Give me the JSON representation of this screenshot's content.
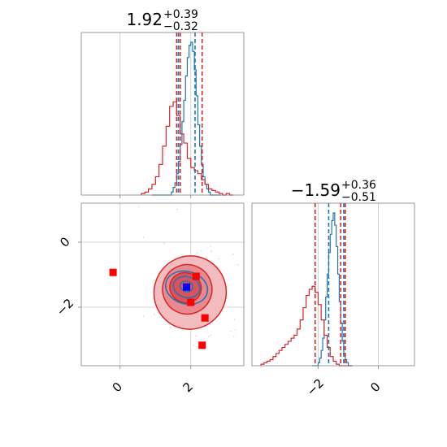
{
  "chart_data": [
    {
      "type": "histogram",
      "panel": "top-left",
      "title_value": "1.92",
      "title_plus": "+0.39",
      "title_minus": "−0.32",
      "x_range": [
        -1.1,
        3.5
      ],
      "x_ticks": [
        0,
        2
      ],
      "grid": true,
      "series": [
        {
          "color": "#1f77b4",
          "x_start": 0.9,
          "bin_width": 0.05,
          "counts": [
            0,
            0,
            0,
            0,
            0,
            0,
            0,
            0,
            0,
            0,
            0,
            0.02,
            0.05,
            0.08,
            0.14,
            0.22,
            0.33,
            0.48,
            0.62,
            0.78,
            0.9,
            0.98,
            1.0,
            0.94,
            0.82,
            0.65,
            0.46,
            0.32,
            0.2,
            0.12,
            0.07,
            0.04,
            0.02,
            0,
            0,
            0,
            0,
            0,
            0
          ]
        },
        {
          "color": "#d62728",
          "x_start": 0.6,
          "bin_width": 0.1,
          "counts": [
            0.01,
            0.02,
            0.04,
            0.07,
            0.12,
            0.2,
            0.32,
            0.45,
            0.58,
            0.61,
            0.52,
            0.4,
            0.34,
            0.24,
            0.18,
            0.16,
            0.14,
            0.1,
            0.07,
            0.04,
            0.03,
            0.02,
            0.01,
            0,
            0.01,
            0
          ]
        }
      ],
      "quantile_lines": [
        {
          "color": "#1f77b4",
          "values": [
            1.65,
            2.12
          ]
        },
        {
          "color": "#d62728",
          "values": [
            1.6,
            1.7,
            2.32
          ]
        }
      ]
    },
    {
      "type": "histogram",
      "panel": "bottom-right",
      "title_value": "−1.59",
      "title_plus": "+0.36",
      "title_minus": "−0.51",
      "x_range": [
        -4.2,
        1.2
      ],
      "x_ticks": [
        -2,
        0
      ],
      "grid": true,
      "series": [
        {
          "color": "#1f77b4",
          "x_start": -2.2,
          "bin_width": 0.05,
          "counts": [
            0,
            0,
            0,
            0,
            0.02,
            0.05,
            0.1,
            0.18,
            0.3,
            0.45,
            0.6,
            0.74,
            0.86,
            0.95,
            1.0,
            0.92,
            0.78,
            0.6,
            0.42,
            0.28,
            0.16,
            0.08,
            0.04,
            0.02,
            0,
            0,
            0
          ]
        },
        {
          "color": "#d62728",
          "x_start": -3.9,
          "bin_width": 0.1,
          "counts": [
            0.01,
            0.02,
            0.03,
            0.04,
            0.06,
            0.08,
            0.1,
            0.12,
            0.14,
            0.16,
            0.18,
            0.2,
            0.24,
            0.3,
            0.38,
            0.46,
            0.5,
            0.52,
            0.48,
            0.4,
            0.3,
            0.2,
            0.12,
            0.06,
            0.03,
            0.01,
            0,
            0,
            0,
            0
          ]
        }
      ],
      "quantile_lines": [
        {
          "color": "#1f77b4",
          "values": [
            -1.65,
            -1.15
          ]
        },
        {
          "color": "#d62728",
          "values": [
            -2.1,
            -1.25,
            -1.1
          ]
        }
      ]
    },
    {
      "type": "contour",
      "panel": "bottom-left",
      "x_range": [
        -1.1,
        3.5
      ],
      "y_range": [
        -3.8,
        1.2
      ],
      "x_ticks": [
        0,
        2
      ],
      "y_ticks": [
        0,
        -2
      ],
      "grid": true,
      "red_levels": [
        {
          "cx": 1.98,
          "cy": -1.55,
          "rx": 1.02,
          "ry": 1.13
        },
        {
          "cx": 1.9,
          "cy": -1.45,
          "rx": 0.7,
          "ry": 0.76
        },
        {
          "cx": 1.85,
          "cy": -1.4,
          "rx": 0.45,
          "ry": 0.46
        }
      ],
      "blue_levels": [
        {
          "cx": 1.88,
          "cy": -1.4,
          "rx": 0.6,
          "ry": 0.5
        },
        {
          "cx": 1.88,
          "cy": -1.38,
          "rx": 0.38,
          "ry": 0.32
        },
        {
          "cx": 1.88,
          "cy": -1.36,
          "rx": 0.18,
          "ry": 0.16
        }
      ],
      "red_markers": [
        {
          "x": -0.2,
          "y": -0.93
        },
        {
          "x": 2.15,
          "y": -1.05
        },
        {
          "x": 2.0,
          "y": -1.85
        },
        {
          "x": 2.4,
          "y": -2.33
        },
        {
          "x": 2.32,
          "y": -3.17
        }
      ],
      "blue_markers": [
        {
          "x": 1.88,
          "y": -1.38
        }
      ]
    }
  ]
}
